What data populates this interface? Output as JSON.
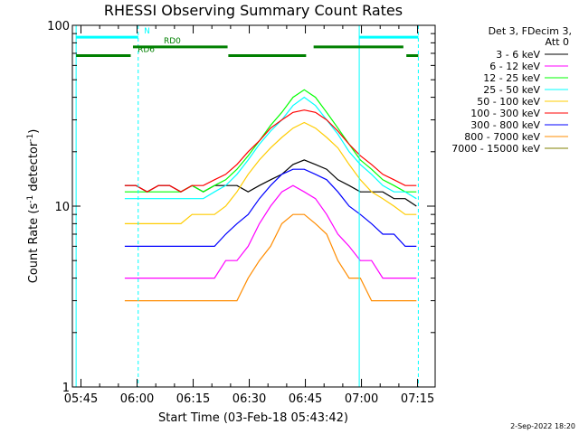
{
  "chart_data": {
    "type": "line",
    "title": "RHESSI Observing Summary Count Rates",
    "xlabel": "Start Time (03-Feb-18 05:43:42)",
    "ylabel_main": "Count Rate (s",
    "ylabel_sup1": "-1",
    "ylabel_mid": " detector",
    "ylabel_sup2": "-1",
    "ylabel_end": ")",
    "x_unit": "minutes after 05:43:42",
    "xlim": [
      -1.0,
      96.0
    ],
    "ylim": [
      1,
      100
    ],
    "yscale": "log",
    "x_ticks": [
      {
        "label": "05:45",
        "value": 1.3
      },
      {
        "label": "06:00",
        "value": 16.3
      },
      {
        "label": "06:15",
        "value": 31.3
      },
      {
        "label": "06:30",
        "value": 46.3
      },
      {
        "label": "06:45",
        "value": 61.3
      },
      {
        "label": "07:00",
        "value": 76.3
      },
      {
        "label": "07:15",
        "value": 91.3
      }
    ],
    "y_ticks": [
      {
        "label": "1",
        "value": 1
      },
      {
        "label": "10",
        "value": 10
      },
      {
        "label": "100",
        "value": 100
      }
    ],
    "legend": {
      "header": [
        "Det 3, FDecim 3,",
        "Att 0"
      ],
      "position": "right"
    },
    "series": [
      {
        "name": "3 - 6 keV",
        "color": "#000000",
        "values": [
          13,
          13,
          12,
          13,
          13,
          12,
          13,
          12,
          13,
          13,
          13,
          12,
          13,
          14,
          15,
          17,
          18,
          17,
          16,
          14,
          13,
          12,
          12,
          12,
          11,
          11,
          10
        ]
      },
      {
        "name": "6 - 12 keV",
        "color": "#ff00ff",
        "values": [
          4,
          4,
          4,
          4,
          4,
          4,
          4,
          4,
          4,
          5,
          5,
          6,
          8,
          10,
          12,
          13,
          12,
          11,
          9,
          7,
          6,
          5,
          5,
          4,
          4,
          4,
          4
        ]
      },
      {
        "name": "12 - 25 keV",
        "color": "#00ff00",
        "values": [
          12,
          12,
          12,
          12,
          12,
          12,
          13,
          12,
          13,
          14,
          16,
          19,
          23,
          28,
          33,
          40,
          44,
          40,
          33,
          27,
          22,
          18,
          16,
          14,
          13,
          12,
          12
        ]
      },
      {
        "name": "25 - 50 keV",
        "color": "#00ffff",
        "values": [
          11,
          11,
          11,
          11,
          11,
          11,
          11,
          11,
          12,
          13,
          15,
          18,
          22,
          26,
          30,
          36,
          40,
          36,
          30,
          25,
          20,
          17,
          15,
          13,
          12,
          12,
          11
        ]
      },
      {
        "name": "50 - 100 keV",
        "color": "#ffcc00",
        "values": [
          8,
          8,
          8,
          8,
          8,
          8,
          9,
          9,
          9,
          10,
          12,
          15,
          18,
          21,
          24,
          27,
          29,
          27,
          24,
          21,
          17,
          14,
          12,
          11,
          10,
          9,
          9
        ]
      },
      {
        "name": "100 - 300 keV",
        "color": "#ff0000",
        "values": [
          13,
          13,
          12,
          13,
          13,
          12,
          13,
          13,
          14,
          15,
          17,
          20,
          23,
          27,
          30,
          33,
          34,
          33,
          30,
          26,
          22,
          19,
          17,
          15,
          14,
          13,
          13
        ]
      },
      {
        "name": "300 - 800 keV",
        "color": "#0000ff",
        "values": [
          6,
          6,
          6,
          6,
          6,
          6,
          6,
          6,
          6,
          7,
          8,
          9,
          11,
          13,
          15,
          16,
          16,
          15,
          14,
          12,
          10,
          9,
          8,
          7,
          7,
          6,
          6
        ]
      },
      {
        "name": "800 - 7000 keV",
        "color": "#ff8c00",
        "values": [
          3,
          3,
          3,
          3,
          3,
          3,
          3,
          3,
          3,
          3,
          3,
          4,
          5,
          6,
          8,
          9,
          9,
          8,
          7,
          5,
          4,
          4,
          3,
          3,
          3,
          3,
          3
        ]
      },
      {
        "name": "7000 - 15000 keV",
        "color": "#808000",
        "values": []
      }
    ],
    "data_x": [
      13,
      16,
      19,
      22,
      25,
      28,
      31,
      34,
      37,
      40,
      43,
      46,
      49,
      52,
      55,
      58,
      61,
      64,
      67,
      70,
      73,
      76,
      79,
      82,
      85,
      88,
      91
    ],
    "state_bars": [
      {
        "label": "N",
        "color": "#00ffff",
        "segments": [
          [
            0,
            16.6
          ],
          [
            75.7,
            91.5
          ]
        ],
        "level": 86
      },
      {
        "label": "RD0",
        "color": "#008000",
        "segments": [
          [
            15.2,
            40.5
          ],
          [
            63.5,
            87.5
          ]
        ],
        "level": 76
      },
      {
        "label": "RD6",
        "color": "#008000",
        "segments": [
          [
            0,
            14.6
          ],
          [
            40.7,
            61.5
          ],
          [
            88.3,
            91.5
          ]
        ],
        "level": 68
      }
    ],
    "vertical_lines": [
      {
        "x": 0.0,
        "color": "#00ffff",
        "style": "solid"
      },
      {
        "x": 16.6,
        "color": "#00ffff",
        "style": "dashed"
      },
      {
        "x": 75.7,
        "color": "#00ffff",
        "style": "solid"
      },
      {
        "x": 91.5,
        "color": "#00ffff",
        "style": "dashed"
      }
    ]
  },
  "footer": {
    "date_stamp": "2-Sep-2022 18:20"
  }
}
